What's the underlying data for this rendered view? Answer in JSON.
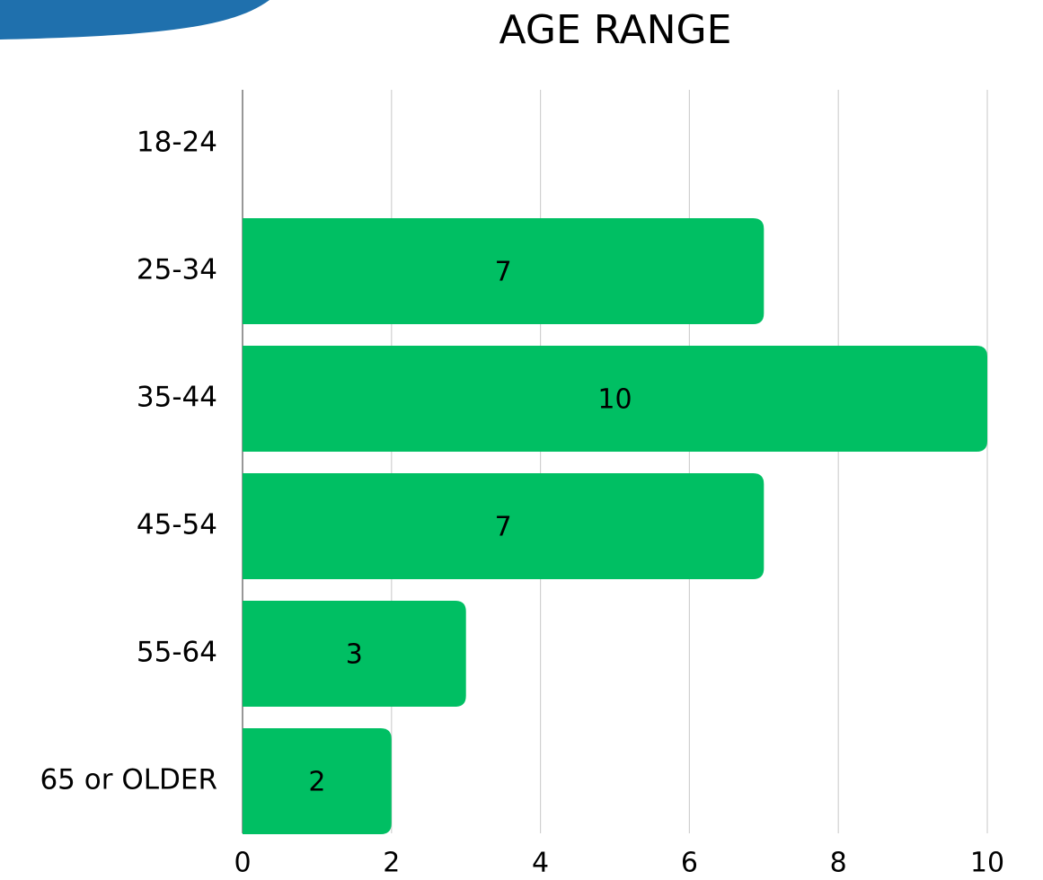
{
  "chart_data": {
    "type": "barh",
    "title": "AGE RANGE",
    "categories": [
      "18-24",
      "25-34",
      "35-44",
      "45-54",
      "55-64",
      "65 or OLDER"
    ],
    "values": [
      0,
      7,
      10,
      7,
      3,
      2
    ],
    "color": "#00bf63",
    "xlim": [
      0,
      10
    ],
    "xticks": [
      0,
      2,
      4,
      6,
      8,
      10
    ],
    "grid": true
  }
}
